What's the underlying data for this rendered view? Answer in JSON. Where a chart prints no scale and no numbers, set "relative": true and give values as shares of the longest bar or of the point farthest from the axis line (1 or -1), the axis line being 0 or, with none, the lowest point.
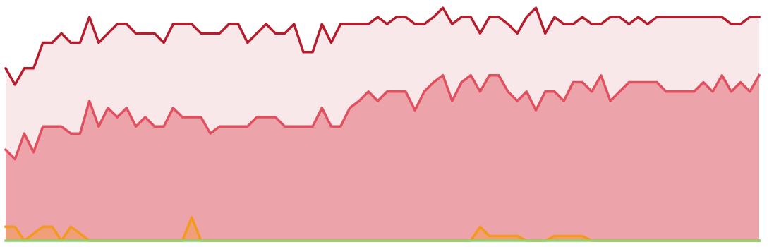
{
  "chart_data": {
    "type": "area",
    "relative": true,
    "categories": [
      null,
      null,
      null,
      null,
      null,
      null,
      null,
      null,
      null,
      null,
      null,
      null,
      null,
      null,
      null,
      null,
      null,
      null,
      null,
      null,
      null,
      null,
      null,
      null,
      null,
      null,
      null,
      null,
      null,
      null,
      null,
      null,
      null,
      null,
      null,
      null,
      null,
      null,
      null,
      null,
      null,
      null,
      null,
      null,
      null,
      null,
      null,
      null,
      null,
      null,
      null,
      null,
      null,
      null,
      null,
      null,
      null,
      null,
      null,
      null,
      null,
      null,
      null,
      null,
      null,
      null,
      null,
      null,
      null,
      null,
      null,
      null,
      null,
      null,
      null,
      null,
      null,
      null,
      null,
      null,
      null,
      null
    ],
    "grid": false,
    "legend": false,
    "series": [
      {
        "color": "#b71c2c",
        "values": [
          0.74,
          0.67,
          0.74,
          0.74,
          0.85,
          0.85,
          0.89,
          0.85,
          0.85,
          0.96,
          0.85,
          0.89,
          0.93,
          0.93,
          0.89,
          0.89,
          0.89,
          0.85,
          0.93,
          0.93,
          0.93,
          0.89,
          0.89,
          0.89,
          0.93,
          0.93,
          0.85,
          0.89,
          0.93,
          0.89,
          0.89,
          0.93,
          0.81,
          0.81,
          0.93,
          0.85,
          0.93,
          0.93,
          0.93,
          0.93,
          0.96,
          0.93,
          0.96,
          0.96,
          0.93,
          0.93,
          0.96,
          1.0,
          0.93,
          0.96,
          0.96,
          0.89,
          0.96,
          0.96,
          0.93,
          0.89,
          0.96,
          1.0,
          0.89,
          0.96,
          0.93,
          0.93,
          0.96,
          0.93,
          0.93,
          0.96,
          0.96,
          0.93,
          0.96,
          0.93,
          0.96,
          0.96,
          0.96,
          0.96,
          0.96,
          0.96,
          0.96,
          0.96,
          0.93,
          0.93,
          0.96,
          0.96
        ]
      },
      {
        "color": "#e0505e",
        "values": [
          0.39,
          0.35,
          0.46,
          0.38,
          0.49,
          0.49,
          0.49,
          0.46,
          0.46,
          0.6,
          0.49,
          0.57,
          0.53,
          0.57,
          0.49,
          0.53,
          0.49,
          0.49,
          0.57,
          0.53,
          0.53,
          0.53,
          0.46,
          0.49,
          0.49,
          0.49,
          0.49,
          0.53,
          0.53,
          0.53,
          0.49,
          0.49,
          0.49,
          0.49,
          0.57,
          0.49,
          0.49,
          0.57,
          0.6,
          0.64,
          0.6,
          0.64,
          0.64,
          0.64,
          0.56,
          0.64,
          0.68,
          0.71,
          0.6,
          0.68,
          0.71,
          0.64,
          0.71,
          0.71,
          0.64,
          0.6,
          0.64,
          0.56,
          0.64,
          0.64,
          0.6,
          0.68,
          0.68,
          0.64,
          0.71,
          0.6,
          0.64,
          0.68,
          0.68,
          0.68,
          0.68,
          0.64,
          0.64,
          0.64,
          0.64,
          0.68,
          0.64,
          0.71,
          0.64,
          0.68,
          0.64,
          0.71
        ]
      },
      {
        "color": "#f39a1e",
        "values": [
          0.06,
          0.06,
          0,
          0.03,
          0.06,
          0.06,
          0,
          0.06,
          0.03,
          0,
          0,
          0,
          0,
          0,
          0,
          0,
          0,
          0,
          0,
          0,
          0.1,
          0,
          0,
          0,
          0,
          0,
          0,
          0,
          0,
          0,
          0,
          0,
          0,
          0,
          0,
          0,
          0,
          0,
          0,
          0,
          0,
          0,
          0,
          0,
          0,
          0,
          0,
          0,
          0,
          0,
          0,
          0.06,
          0.02,
          0.02,
          0.02,
          0.02,
          0,
          0,
          0,
          0.02,
          0.02,
          0.02,
          0.02,
          0,
          0,
          0,
          0,
          0,
          0,
          0,
          0,
          0,
          0,
          0,
          0,
          0,
          0,
          0,
          0,
          0,
          0,
          0
        ]
      },
      {
        "type": "line",
        "color": "#8ed36f",
        "values": [
          0,
          0,
          0,
          0,
          0,
          0,
          0,
          0,
          0,
          0,
          0,
          0,
          0,
          0,
          0,
          0,
          0,
          0,
          0,
          0,
          0,
          0,
          0,
          0,
          0,
          0,
          0,
          0,
          0,
          0,
          0,
          0,
          0,
          0,
          0,
          0,
          0,
          0,
          0,
          0,
          0,
          0,
          0,
          0,
          0,
          0,
          0,
          0,
          0,
          0,
          0,
          0,
          0,
          0,
          0,
          0,
          0,
          0,
          0,
          0,
          0,
          0,
          0,
          0,
          0,
          0,
          0,
          0,
          0,
          0,
          0,
          0,
          0,
          0,
          0,
          0,
          0,
          0,
          0,
          0,
          0,
          0
        ]
      }
    ]
  }
}
